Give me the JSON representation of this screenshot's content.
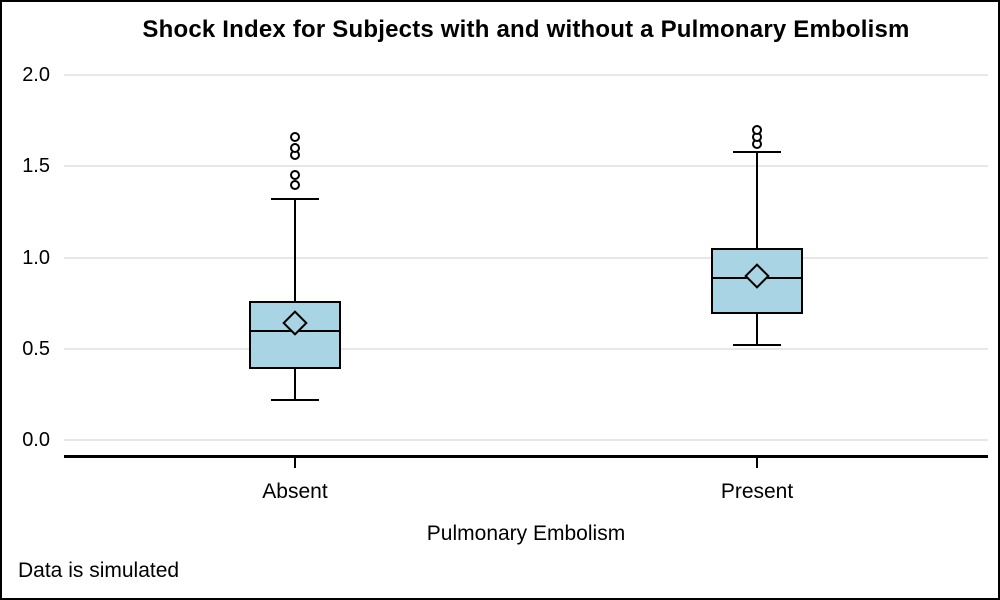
{
  "chart_data": {
    "type": "boxplot",
    "title": "Shock Index for Subjects with and without a Pulmonary Embolism",
    "footnote": "Data is simulated",
    "xlabel": "Pulmonary Embolism",
    "ylabel": "",
    "ylim": [
      0.0,
      2.0
    ],
    "yticks": [
      0.0,
      0.5,
      1.0,
      1.5,
      2.0
    ],
    "ytick_labels": [
      "0.0",
      "0.5",
      "1.0",
      "1.5",
      "2.0"
    ],
    "grid": true,
    "legend": "none",
    "mean_marker": "diamond",
    "categories": [
      "Absent",
      "Present"
    ],
    "series": [
      {
        "category": "Absent",
        "whisker_low": 0.22,
        "q1": 0.39,
        "median": 0.6,
        "mean": 0.64,
        "q3": 0.76,
        "whisker_high": 1.32,
        "outliers": [
          1.4,
          1.45,
          1.56,
          1.6,
          1.66
        ]
      },
      {
        "category": "Present",
        "whisker_low": 0.52,
        "q1": 0.69,
        "median": 0.89,
        "mean": 0.9,
        "q3": 1.05,
        "whisker_high": 1.58,
        "outliers": [
          1.62,
          1.66,
          1.7
        ]
      }
    ],
    "colors": {
      "box_fill": "#A9D4E3",
      "stroke": "#000000",
      "gridline": "#E7E7E7",
      "background": "#FFFFFF",
      "outlier_fill": "#FFFFFF"
    }
  }
}
